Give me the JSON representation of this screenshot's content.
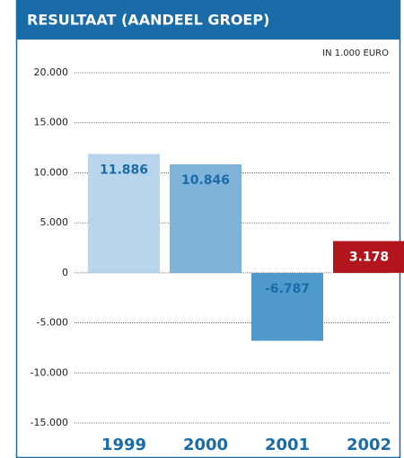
{
  "chart_data": {
    "type": "bar",
    "title": "RESULTAAT (AANDEEL GROEP)",
    "unit_label": "IN 1.000 EURO",
    "categories": [
      "1999",
      "2000",
      "2001",
      "2002"
    ],
    "values": [
      11886,
      10846,
      -6787,
      3178
    ],
    "value_labels": [
      "11.886",
      "10.846",
      "-6.787",
      "3.178"
    ],
    "colors": [
      "#b9d5eb",
      "#80b3da",
      "#4f99cd",
      "#b2151b"
    ],
    "label_colors": [
      "#1a6ca8",
      "#1a6ca8",
      "#1a6ca8",
      "#ffffff"
    ],
    "ylim": [
      -15000,
      20000
    ],
    "yticks": [
      {
        "value": -15000,
        "label": "-15.000"
      },
      {
        "value": -10000,
        "label": "-10.000"
      },
      {
        "value": -5000,
        "label": "-5.000"
      },
      0,
      {
        "value": 5000,
        "label": "5.000"
      },
      {
        "value": 10000,
        "label": "10.000"
      },
      {
        "value": 15000,
        "label": "15.000"
      },
      {
        "value": 20000,
        "label": "20.000"
      }
    ],
    "grid": true
  }
}
